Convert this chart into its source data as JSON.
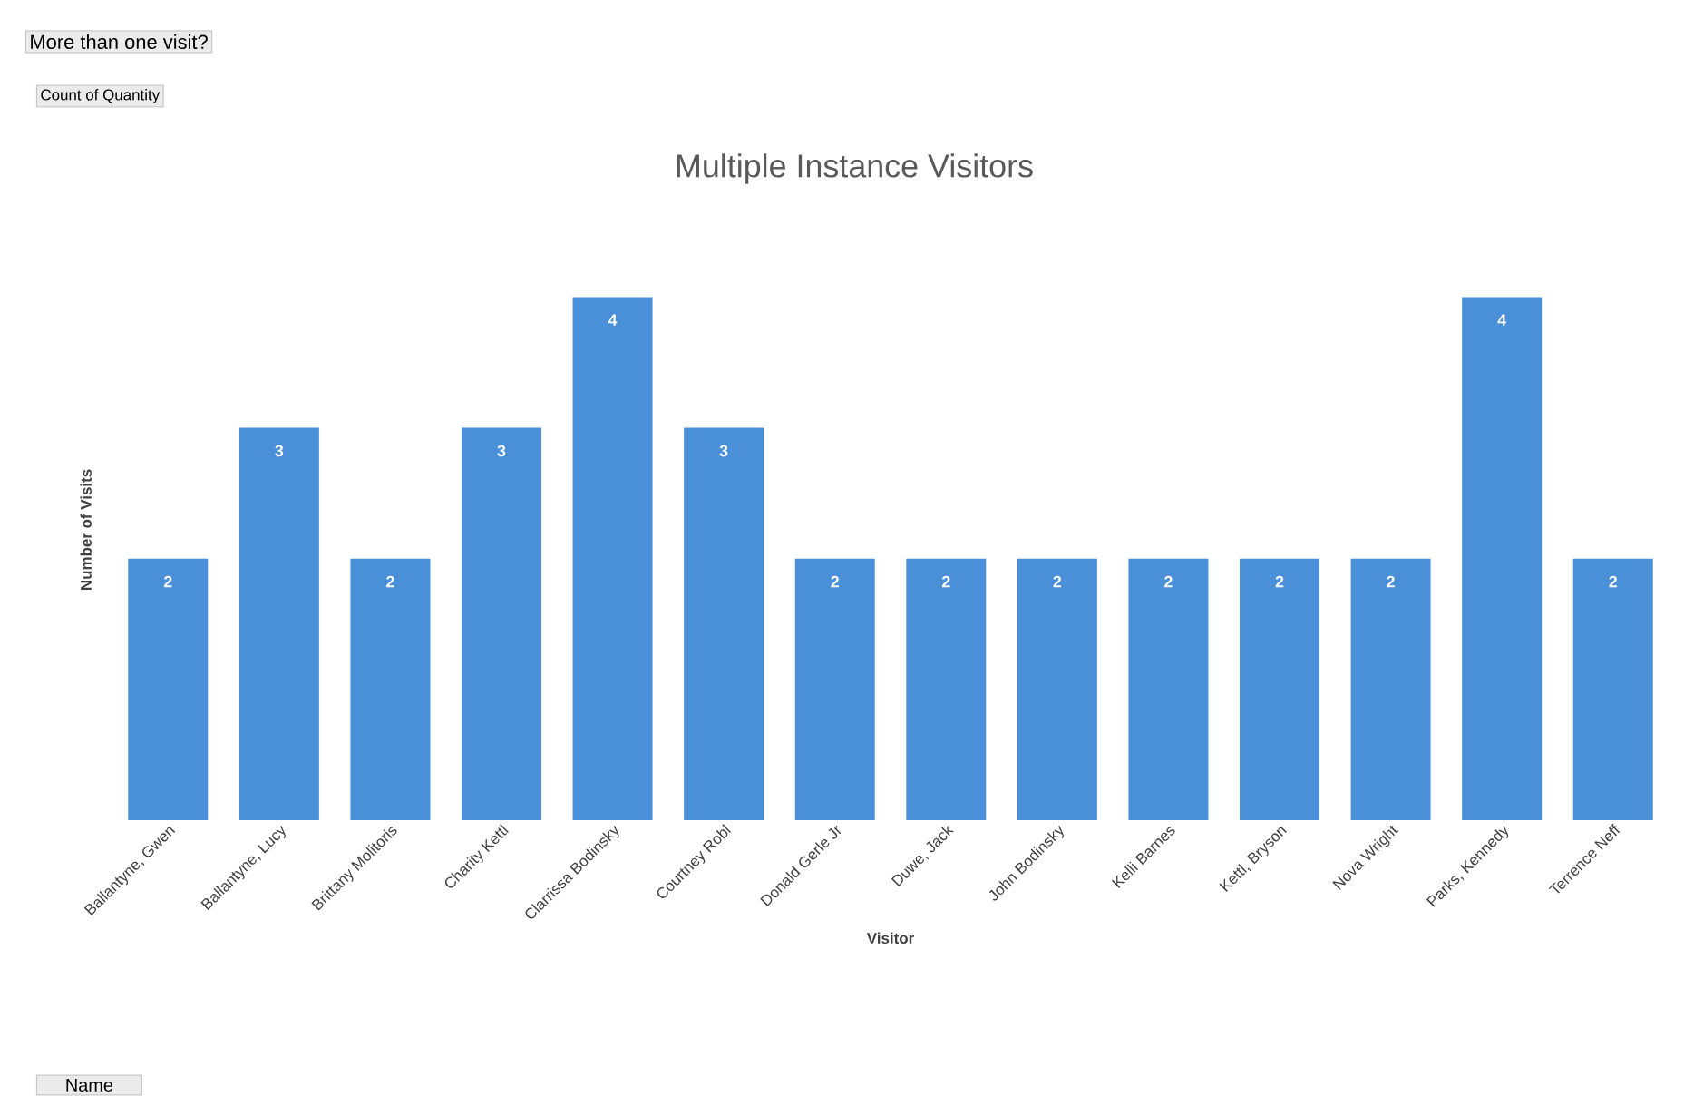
{
  "chart_data": {
    "type": "bar",
    "title": "Multiple Instance Visitors",
    "xlabel": "Visitor",
    "ylabel": "Number of Visits",
    "categories": [
      "Ballantyne, Gwen",
      "Ballantyne, Lucy",
      "Brittany Molitoris",
      "Charity Kettl",
      "Clarrissa Bodinsky",
      "Courtney Robl",
      "Donald Gerle Jr",
      "Duwe, Jack",
      "John Bodinsky",
      "Kelli Barnes",
      "Kettl, Bryson",
      "Nova Wright",
      "Parks, Kennedy",
      "Terrence  Neff"
    ],
    "values": [
      2,
      3,
      2,
      3,
      4,
      3,
      2,
      2,
      2,
      2,
      2,
      2,
      4,
      2
    ],
    "color": "#4a90d9",
    "data_labels": true,
    "annotations": [
      "More than one visit?",
      "Count of Quantity",
      "Name"
    ]
  }
}
